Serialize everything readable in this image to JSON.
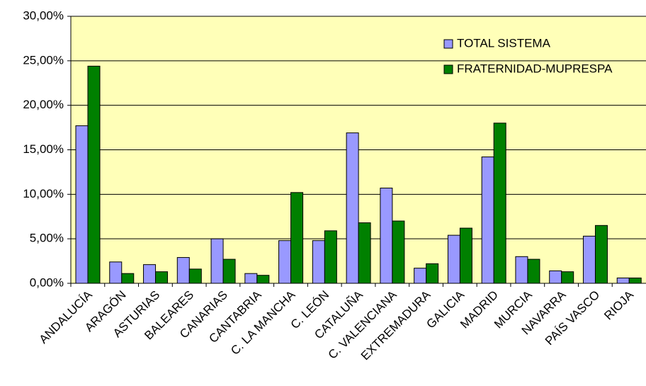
{
  "chart_data": {
    "type": "bar",
    "categories": [
      "ANDALUCÍA",
      "ARAGÓN",
      "ASTURIAS",
      "BALEARES",
      "CANARIAS",
      "CANTABRIA",
      "C. LA MANCHA",
      "C. LEÓN",
      "CATALUÑA",
      "C. VALENCIANA",
      "EXTREMADURA",
      "GALICIA",
      "MADRID",
      "MURCIA",
      "NAVARRA",
      "PAÍS VASCO",
      "RIOJA"
    ],
    "series": [
      {
        "name": "TOTAL SISTEMA",
        "color": "#9999ff",
        "values": [
          17.7,
          2.4,
          2.1,
          2.9,
          5.0,
          1.1,
          4.8,
          4.8,
          16.9,
          10.7,
          1.7,
          5.4,
          14.2,
          3.0,
          1.4,
          5.3,
          0.6
        ]
      },
      {
        "name": "FRATERNIDAD-MUPRESPA",
        "color": "#008000",
        "values": [
          24.4,
          1.1,
          1.3,
          1.6,
          2.7,
          0.9,
          10.2,
          5.9,
          6.8,
          7.0,
          2.2,
          6.2,
          18.0,
          2.7,
          1.3,
          6.5,
          0.6
        ]
      }
    ],
    "ylim": [
      0,
      30
    ],
    "yticks": [
      {
        "value": 0,
        "label": "0,00%"
      },
      {
        "value": 5,
        "label": "5,00%"
      },
      {
        "value": 10,
        "label": "10,00%"
      },
      {
        "value": 15,
        "label": "15,00%"
      },
      {
        "value": 20,
        "label": "20,00%"
      },
      {
        "value": 25,
        "label": "25,00%"
      },
      {
        "value": 30,
        "label": "30,00%"
      }
    ],
    "grid": true,
    "legend": "top-right",
    "background": "#ffffb8"
  }
}
